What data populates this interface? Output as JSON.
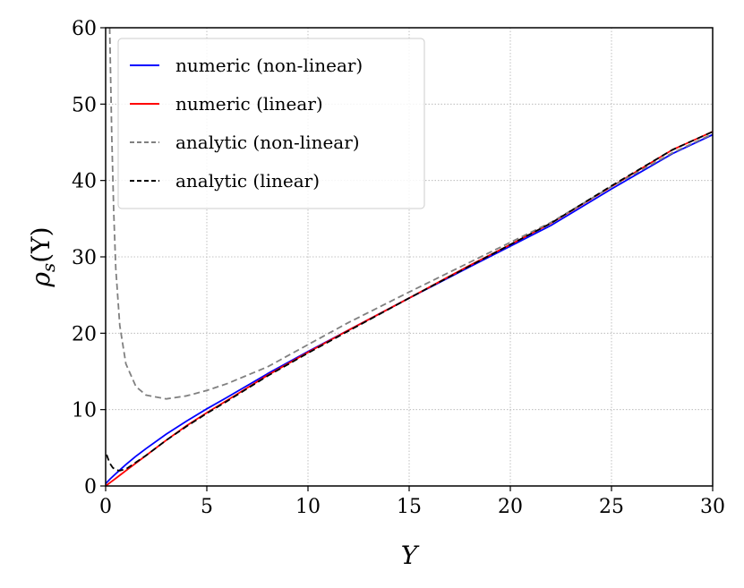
{
  "chart_data": {
    "type": "line",
    "xlabel": "Υ",
    "ylabel_main": "ρ",
    "ylabel_sub": "s",
    "ylabel_arg": "(Υ)",
    "xlim": [
      0,
      30
    ],
    "ylim": [
      0,
      60
    ],
    "xticks": [
      0,
      5,
      10,
      15,
      20,
      25,
      30
    ],
    "yticks": [
      0,
      10,
      20,
      30,
      40,
      50,
      60
    ],
    "grid": true,
    "legend_position": "top-left",
    "series": [
      {
        "name": "numeric (non-linear)",
        "color": "#0000ff",
        "style": "solid",
        "x": [
          0,
          0.25,
          0.5,
          1,
          1.5,
          2,
          3,
          4,
          5,
          6,
          8,
          10,
          12,
          15,
          18,
          20,
          22,
          25,
          28,
          30
        ],
        "y": [
          0.3,
          1.0,
          1.6,
          2.8,
          3.9,
          4.9,
          6.8,
          8.5,
          10.1,
          11.6,
          14.7,
          17.6,
          20.4,
          24.6,
          28.7,
          31.4,
          34.1,
          38.9,
          43.5,
          46.0
        ]
      },
      {
        "name": "numeric (linear)",
        "color": "#ff0000",
        "style": "solid",
        "x": [
          0,
          0.25,
          0.5,
          1,
          1.5,
          2,
          3,
          4,
          5,
          6,
          8,
          10,
          12,
          15,
          18,
          20,
          22,
          25,
          28,
          30
        ],
        "y": [
          0,
          0.5,
          1.0,
          2.0,
          3.0,
          4.0,
          6.0,
          7.9,
          9.6,
          11.2,
          14.5,
          17.5,
          20.4,
          24.6,
          28.9,
          31.6,
          34.4,
          39.2,
          44.0,
          46.4
        ]
      },
      {
        "name": "analytic (non-linear)",
        "color": "#808080",
        "style": "dashed",
        "x": [
          0.2,
          0.3,
          0.4,
          0.5,
          0.7,
          1,
          1.5,
          2,
          3,
          4,
          5,
          6,
          8,
          10,
          12,
          15,
          18,
          20,
          22,
          25,
          28,
          30
        ],
        "y": [
          60,
          46,
          36,
          28.5,
          21.0,
          16.0,
          13.0,
          11.9,
          11.4,
          11.8,
          12.5,
          13.4,
          15.6,
          18.5,
          21.4,
          25.4,
          29.3,
          31.9,
          34.5,
          39.2,
          43.6,
          46.1
        ]
      },
      {
        "name": "analytic (linear)",
        "color": "#000000",
        "style": "dashed",
        "x": [
          0.05,
          0.1,
          0.2,
          0.35,
          0.5,
          0.7,
          1,
          1.5,
          2,
          3,
          4,
          5,
          6,
          8,
          10,
          12,
          15,
          18,
          20,
          22,
          25,
          28,
          30
        ],
        "y": [
          4.1,
          3.7,
          3.0,
          2.4,
          2.1,
          2.0,
          2.2,
          3.1,
          4.0,
          6.0,
          7.8,
          9.5,
          11.1,
          14.4,
          17.4,
          20.3,
          24.6,
          28.8,
          31.6,
          34.4,
          39.3,
          44.0,
          46.4
        ]
      }
    ]
  }
}
